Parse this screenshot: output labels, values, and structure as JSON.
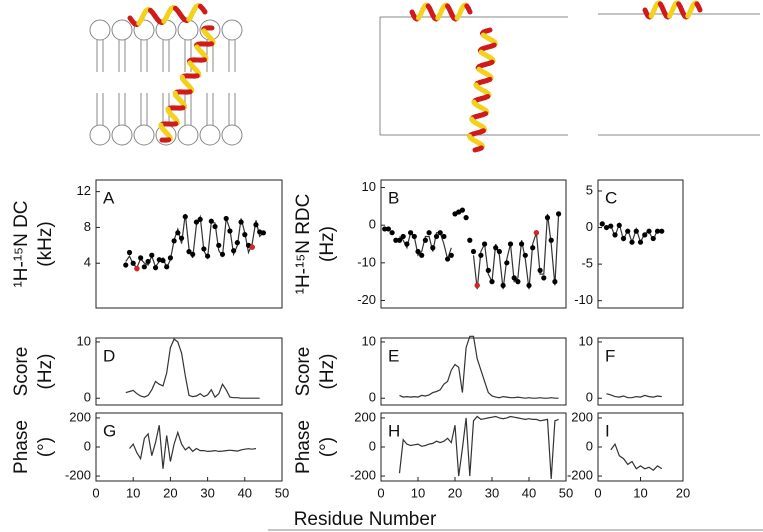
{
  "xlabel": "Residue Number",
  "chart_data": [
    {
      "type": "line",
      "letter": "A",
      "ylabel": [
        "¹H-¹⁵N DC",
        "(kHz)"
      ],
      "xlim": [
        0,
        50
      ],
      "ylim": [
        -1,
        13.3
      ],
      "yticks": [
        4,
        8,
        12
      ],
      "series": [
        {
          "mode": "line",
          "color": "#333333",
          "x": [
            8,
            9,
            10,
            11,
            12,
            13,
            14,
            15,
            16,
            17,
            18,
            19,
            20,
            21,
            22,
            23,
            24,
            25,
            26,
            27,
            28,
            29,
            30,
            31,
            32,
            33,
            34,
            35,
            36,
            37,
            38,
            39,
            40,
            41,
            42,
            43,
            44,
            45
          ],
          "values": [
            4.2,
            4.8,
            3.9,
            3.5,
            4.5,
            4.0,
            3.8,
            4.8,
            3.6,
            4.2,
            4.6,
            3.5,
            4.4,
            6.6,
            7.8,
            6.2,
            9.5,
            5.6,
            4.6,
            8.3,
            9.2,
            5.4,
            4.6,
            8.6,
            8.5,
            5.4,
            4.8,
            9.0,
            7.8,
            5.0,
            6.0,
            9.0,
            7.4,
            5.2,
            6.2,
            8.8,
            7.0,
            7.4
          ]
        },
        {
          "mode": "markers",
          "color": "#000000",
          "x": [
            8,
            9,
            10,
            11,
            12,
            13,
            14,
            15,
            16,
            17,
            18,
            19,
            20,
            21,
            22,
            23,
            24,
            25,
            26,
            27,
            28,
            29,
            30,
            31,
            32,
            33,
            34,
            35,
            36,
            37,
            38,
            39,
            40,
            41,
            42,
            43,
            44,
            45
          ],
          "values": [
            3.8,
            5.2,
            4.0,
            3.4,
            4.6,
            3.6,
            4.2,
            4.9,
            3.5,
            4.4,
            4.3,
            3.6,
            4.6,
            6.5,
            7.4,
            6.8,
            9.2,
            5.3,
            5.0,
            8.6,
            8.9,
            5.6,
            4.8,
            8.7,
            8.1,
            6.0,
            5.0,
            9.0,
            7.6,
            5.4,
            6.3,
            8.6,
            7.2,
            6.0,
            5.8,
            8.3,
            7.5,
            7.4
          ]
        },
        {
          "mode": "markers",
          "color": "#e0201b",
          "x": [
            11,
            42
          ],
          "values": [
            3.4,
            5.8
          ]
        }
      ]
    },
    {
      "type": "line",
      "letter": "B",
      "ylabel": [
        "¹H-¹⁵N RDC",
        "(Hz)"
      ],
      "xlim": [
        0,
        50
      ],
      "ylim": [
        -22,
        12
      ],
      "yticks": [
        10,
        0,
        -10,
        -20
      ],
      "series": [
        {
          "mode": "line",
          "color": "#333333",
          "x": [
            5,
            6,
            7,
            8,
            9,
            10,
            11,
            12,
            13,
            14,
            15,
            16,
            17,
            18,
            19,
            20,
            21,
            22,
            23,
            24,
            25,
            26,
            27,
            28,
            29,
            30,
            31,
            32,
            33,
            34,
            35,
            36,
            37,
            38,
            39,
            40,
            41,
            42,
            43,
            44,
            45,
            46,
            47,
            48
          ],
          "values": [
            -3,
            -4,
            -6,
            -2,
            -3,
            -8,
            -7,
            -3,
            -3,
            -7,
            -2,
            -2,
            -5,
            -9,
            -6,
            null,
            null,
            null,
            null,
            null,
            -8,
            -17,
            -7,
            -5,
            -13,
            -15,
            -5,
            -8,
            -17,
            -9,
            -5,
            -15,
            -14,
            -4,
            -9,
            -17,
            -5,
            -2,
            -13,
            -13,
            3,
            -5,
            -16,
            3
          ]
        },
        {
          "mode": "markers",
          "color": "#000000",
          "x": [
            1,
            2,
            3,
            4,
            5,
            6,
            7,
            8,
            9,
            10,
            11,
            12,
            13,
            14,
            15,
            16,
            17,
            18,
            19,
            20,
            21,
            22,
            23,
            24,
            25,
            26,
            27,
            28,
            29,
            30,
            31,
            32,
            33,
            34,
            35,
            36,
            37,
            38,
            39,
            40,
            41,
            42,
            43,
            44,
            45,
            46,
            47,
            48
          ],
          "values": [
            -1,
            -1,
            -2,
            -4,
            -4,
            -3,
            -5,
            -2,
            -3,
            -7,
            -8,
            -4,
            -2,
            -6,
            -3,
            -2,
            -3,
            -9,
            -8,
            3,
            3.5,
            4,
            2,
            -4,
            -7,
            -16,
            -8,
            -5,
            -12,
            -15,
            -6,
            -7,
            -16,
            -10,
            -5,
            -14,
            -15,
            -5,
            -8,
            -16,
            -6,
            -2,
            -12,
            -14,
            2,
            -4,
            -15,
            3
          ]
        },
        {
          "mode": "markers",
          "color": "#e0201b",
          "x": [
            26,
            42
          ],
          "values": [
            -16,
            -2
          ]
        }
      ]
    },
    {
      "type": "line",
      "letter": "C",
      "xlim": [
        0,
        20
      ],
      "ylim": [
        -11,
        6.5
      ],
      "yticks": [
        5,
        0,
        -5,
        -10
      ],
      "series": [
        {
          "mode": "line",
          "color": "#333333",
          "x": [
            2,
            3,
            4,
            5,
            6,
            7,
            8,
            9,
            10,
            11,
            12,
            13,
            14,
            15
          ],
          "values": [
            0,
            0.3,
            -1.2,
            0.5,
            -1.7,
            -0.3,
            -2,
            -0.2,
            -2,
            -0.8,
            -0.6,
            -1.7,
            -0.3,
            -0.5
          ]
        },
        {
          "mode": "markers",
          "color": "#000000",
          "x": [
            1,
            2,
            3,
            4,
            5,
            6,
            7,
            8,
            9,
            10,
            11,
            12,
            13,
            14,
            15
          ],
          "values": [
            0.5,
            0,
            0.2,
            -1,
            0.3,
            -1.5,
            -0.5,
            -2,
            -0.5,
            -2,
            -1,
            -0.5,
            -1.5,
            -0.5,
            -0.5
          ]
        }
      ]
    },
    {
      "type": "line",
      "letter": "D",
      "ylabel": [
        "Score",
        "(Hz)"
      ],
      "xlim": [
        0,
        50
      ],
      "ylim": [
        -1.2,
        10.7
      ],
      "yticks": [
        10,
        0
      ],
      "series": [
        {
          "mode": "line",
          "color": "#333333",
          "x": [
            8,
            9,
            10,
            11,
            12,
            13,
            14,
            15,
            16,
            17,
            18,
            19,
            20,
            21,
            22,
            23,
            24,
            25,
            26,
            27,
            28,
            29,
            30,
            31,
            32,
            33,
            34,
            35,
            36,
            37,
            38,
            39,
            40,
            41,
            42,
            43,
            44
          ],
          "values": [
            1,
            1.2,
            1.4,
            0.8,
            0.4,
            0.2,
            0.5,
            1.5,
            3,
            2.5,
            2.2,
            4.5,
            9,
            10.5,
            10,
            8,
            4,
            0.5,
            0.3,
            0.4,
            0.8,
            0.3,
            0.6,
            1.5,
            0.2,
            0.8,
            2.5,
            1.5,
            0.2,
            0.1,
            0.1,
            0,
            0,
            0,
            0,
            0,
            0
          ]
        }
      ]
    },
    {
      "type": "line",
      "letter": "E",
      "ylabel": [
        "Score",
        "(Hz)"
      ],
      "xlim": [
        0,
        50
      ],
      "ylim": [
        -1.2,
        10.7
      ],
      "yticks": [
        10,
        0
      ],
      "series": [
        {
          "mode": "line",
          "color": "#333333",
          "x": [
            5,
            6,
            7,
            8,
            9,
            10,
            11,
            12,
            13,
            14,
            15,
            16,
            17,
            18,
            19,
            20,
            21,
            22,
            23,
            24,
            25,
            26,
            27,
            28,
            29,
            30,
            31,
            32,
            33,
            34,
            35,
            36,
            37,
            38,
            39,
            40,
            41,
            42,
            43,
            44,
            45,
            46,
            47,
            48
          ],
          "values": [
            0.5,
            0.2,
            0.3,
            0.2,
            0.3,
            0.2,
            0.5,
            0.4,
            0.6,
            1,
            1.2,
            1.5,
            2.5,
            3,
            5,
            6,
            5.5,
            1,
            9,
            11,
            11,
            7,
            5,
            3,
            1,
            0.4,
            0.2,
            0.1,
            0.3,
            0.2,
            0.1,
            0.1,
            0.2,
            0.1,
            0,
            0.1,
            0,
            0,
            0.1,
            0,
            0,
            0.1,
            0,
            0
          ]
        }
      ]
    },
    {
      "type": "line",
      "letter": "F",
      "xlim": [
        0,
        20
      ],
      "ylim": [
        -1.2,
        10.7
      ],
      "yticks": [
        10,
        0
      ],
      "series": [
        {
          "mode": "line",
          "color": "#333333",
          "x": [
            2,
            3,
            4,
            5,
            6,
            7,
            8,
            9,
            10,
            11,
            12,
            13,
            14,
            15
          ],
          "values": [
            0.8,
            0.6,
            0.3,
            0.2,
            0.4,
            0.1,
            0.1,
            0.3,
            0.2,
            0.5,
            0.3,
            0.2,
            0.4,
            0.3
          ]
        }
      ]
    },
    {
      "type": "line",
      "letter": "G",
      "ylabel": [
        "Phase",
        "(°)"
      ],
      "xlim": [
        0,
        50
      ],
      "ylim": [
        -234,
        234
      ],
      "yticks": [
        200,
        0,
        -200
      ],
      "xticks": [
        0,
        10,
        20,
        30,
        40,
        50
      ],
      "series": [
        {
          "mode": "line",
          "color": "#333333",
          "x": [
            9,
            10,
            11,
            12,
            13,
            14,
            15,
            16,
            17,
            18,
            19,
            20,
            21,
            22,
            23,
            24,
            25,
            26,
            27,
            28,
            29,
            30,
            31,
            32,
            33,
            34,
            35,
            36,
            37,
            38,
            39,
            40,
            41,
            42,
            43
          ],
          "values": [
            -10,
            20,
            -40,
            -80,
            60,
            90,
            -60,
            30,
            150,
            -150,
            80,
            -100,
            20,
            100,
            20,
            -20,
            0,
            -30,
            -10,
            -25,
            -25,
            -30,
            -28,
            -25,
            -30,
            -28,
            -25,
            -22,
            -25,
            -28,
            -20,
            -15,
            -12,
            -15,
            -10
          ]
        }
      ]
    },
    {
      "type": "line",
      "letter": "H",
      "ylabel": [
        "Phase",
        "(°)"
      ],
      "xlim": [
        0,
        50
      ],
      "ylim": [
        -234,
        234
      ],
      "yticks": [
        200,
        0,
        -200
      ],
      "xticks": [
        0,
        10,
        20,
        30,
        40,
        50
      ],
      "series": [
        {
          "mode": "line",
          "color": "#333333",
          "x": [
            5,
            6,
            7,
            8,
            9,
            10,
            11,
            12,
            13,
            14,
            15,
            16,
            17,
            18,
            19,
            20,
            21,
            22,
            23,
            24,
            25,
            26,
            27,
            28,
            29,
            30,
            31,
            32,
            33,
            34,
            35,
            36,
            37,
            38,
            39,
            40,
            41,
            42,
            43,
            44,
            45,
            46,
            47,
            48
          ],
          "values": [
            -180,
            50,
            20,
            10,
            15,
            20,
            5,
            10,
            20,
            25,
            40,
            30,
            40,
            60,
            30,
            150,
            -200,
            -10,
            200,
            -200,
            180,
            210,
            190,
            195,
            200,
            205,
            210,
            200,
            195,
            200,
            210,
            205,
            200,
            195,
            190,
            195,
            190,
            190,
            180,
            185,
            190,
            -220,
            180,
            190
          ]
        }
      ]
    },
    {
      "type": "line",
      "letter": "I",
      "xlim": [
        0,
        20
      ],
      "ylim": [
        -234,
        234
      ],
      "yticks": [
        200,
        0,
        -200
      ],
      "xticks": [
        0,
        10,
        20
      ],
      "series": [
        {
          "mode": "line",
          "color": "#333333",
          "x": [
            3,
            4,
            5,
            6,
            7,
            8,
            9,
            10,
            11,
            12,
            13,
            14,
            15
          ],
          "values": [
            -20,
            20,
            -60,
            -80,
            -120,
            -100,
            -150,
            -130,
            -150,
            -140,
            -160,
            -130,
            -150
          ]
        }
      ]
    }
  ]
}
